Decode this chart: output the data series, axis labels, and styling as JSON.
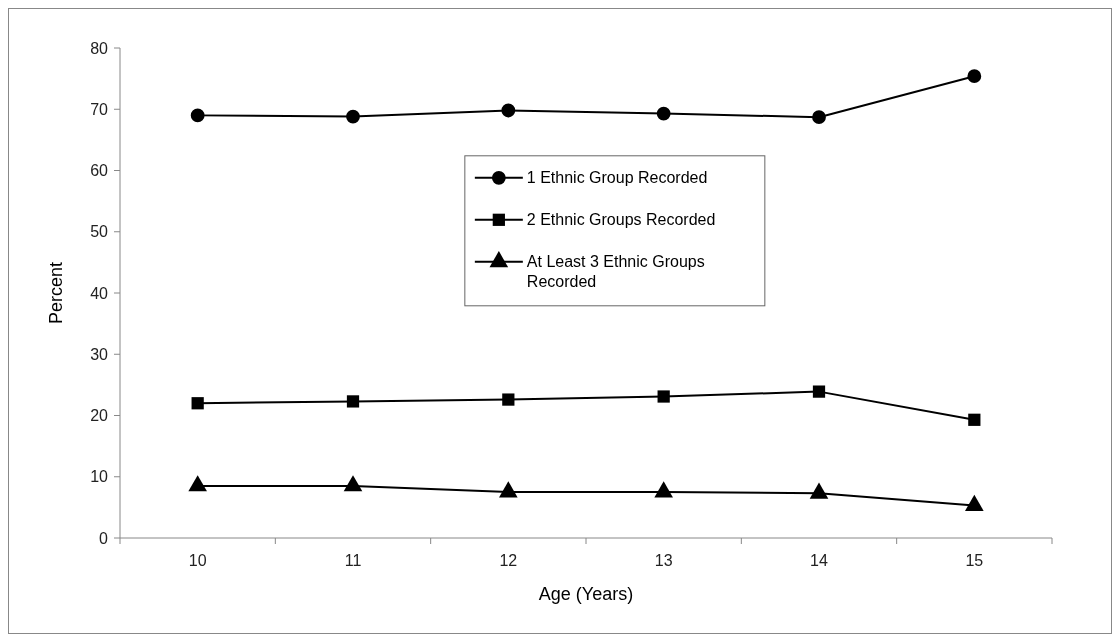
{
  "chart_data": {
    "type": "line",
    "xlabel": "Age (Years)",
    "ylabel": "Percent",
    "categories": [
      "10",
      "11",
      "12",
      "13",
      "14",
      "15"
    ],
    "ylim": [
      0,
      80
    ],
    "yticks": [
      0,
      10,
      20,
      30,
      40,
      50,
      60,
      70,
      80
    ],
    "grid": false,
    "legend": "center",
    "series": [
      {
        "name": "1 Ethnic Group Recorded",
        "color": "#000000",
        "marker": "circle",
        "values": [
          69.0,
          68.8,
          69.8,
          69.3,
          68.7,
          75.4
        ]
      },
      {
        "name": "2 Ethnic Groups Recorded",
        "color": "#000000",
        "marker": "square",
        "values": [
          22.0,
          22.3,
          22.6,
          23.1,
          23.9,
          19.3
        ]
      },
      {
        "name": "At Least 3 Ethnic Groups Recorded",
        "color": "#000000",
        "marker": "triangle",
        "values": [
          8.5,
          8.5,
          7.5,
          7.5,
          7.3,
          5.3
        ]
      }
    ]
  }
}
